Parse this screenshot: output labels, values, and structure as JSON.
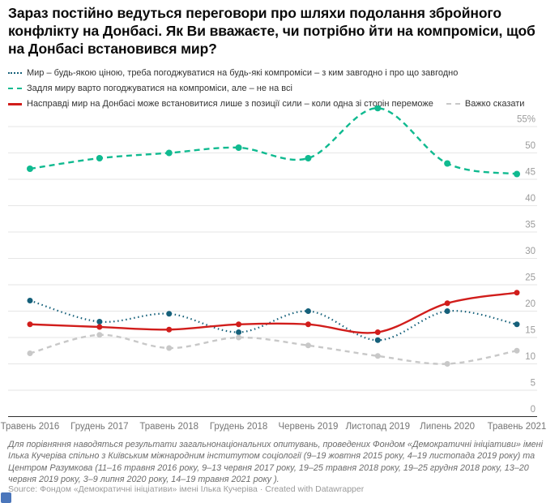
{
  "header": {
    "title": "Зараз постійно ведуться переговори про шляхи подолання збройного конфлікту на Донбасі. Як Ви вважаєте, чи потрібно йти на компроміси, щоб на Донбасі встановився мир?"
  },
  "legend": {
    "items": [
      {
        "label": "Мир – будь-якою ціною, треба погоджуватися на будь-які компроміси – з ким завгодно і про що завгодно",
        "color": "#15607a",
        "style": "dotted"
      },
      {
        "label": "Задля миру варто погоджуватися на компроміси, але – не на всі",
        "color": "#10ba90",
        "style": "dashed"
      },
      {
        "label": "Насправді мир на Донбасі може встановитися лише з позиції сили – коли одна зі сторін переможе",
        "color": "#d11d1b",
        "style": "solid"
      },
      {
        "label": "Важко сказати",
        "color": "#c8c8c8",
        "style": "dashed"
      }
    ]
  },
  "chart_data": {
    "type": "line",
    "title": "Зараз постійно ведуться переговори про шляхи подолання збройного конфлікту на Донбасі. Як Ви вважаєте, чи потрібно йти на компроміси, щоб на Донбасі встановився мир?",
    "categories": [
      "Травень 2016",
      "Грудень 2017",
      "Травень 2018",
      "Грудень 2018",
      "Червень 2019",
      "Листопад 2019",
      "Липень 2020",
      "Травень 2021"
    ],
    "series": [
      {
        "name": "Мир – будь-якою ціною, треба погоджуватися на будь-які компроміси – з ким завгодно і про що завгодно",
        "color": "#15607a",
        "style": "dotted",
        "values": [
          22,
          18,
          19.5,
          16,
          20,
          14.5,
          20,
          17.5
        ]
      },
      {
        "name": "Задля миру варто погоджуватися на компроміси, але – не на всі",
        "color": "#10ba90",
        "style": "dashed",
        "values": [
          47,
          49,
          50,
          51,
          49,
          58.5,
          48,
          46
        ]
      },
      {
        "name": "Насправді мир на Донбасі може встановитися лише з позиції сили – коли одна зі сторін переможе",
        "color": "#d11d1b",
        "style": "solid",
        "values": [
          17.5,
          17,
          16.5,
          17.5,
          17.5,
          16,
          21.5,
          23.5
        ]
      },
      {
        "name": "Важко сказати",
        "color": "#c8c8c8",
        "style": "dashed",
        "values": [
          12,
          15.5,
          13,
          15,
          13.5,
          11.5,
          10,
          12.5
        ]
      }
    ],
    "ylim": [
      0,
      55
    ],
    "yticks": [
      0,
      5,
      10,
      15,
      20,
      25,
      30,
      35,
      40,
      45,
      50,
      55
    ],
    "ytick_top_suffix": "%",
    "grid": true,
    "legend_position": "top",
    "unit": "%"
  },
  "footer": {
    "note": "Для порівняння наводяться результати загальнонаціональних опитувань, проведених Фондом «Демократичні ініціативи» імені Ілька Кучеріва спільно з Київським міжнародним інститутом соціології (9–19 жовтня 2015 року, 4–19 листопада 2019 року) та Центром Разумкова (11–16 травня 2016 року, 9–13 червня 2017 року, 19–25 травня 2018 року, 19–25 грудня 2018 року, 13–20 червня 2019 року, 3–9 липня 2020 року, 14–19 травня 2021 року ).",
    "source_label": "Source:",
    "source_text": "Фондом «Демократичні ініціативи» імені Ілька Кучеріва",
    "separator": "·",
    "attribution": "Created with Datawrapper",
    "logo_color": "#4b76bb"
  },
  "style": {
    "grid_color": "#e6e6e6",
    "axis_color": "#2e2e2e",
    "ytick_color": "#9b9b9b",
    "xtick_color": "#757575"
  }
}
